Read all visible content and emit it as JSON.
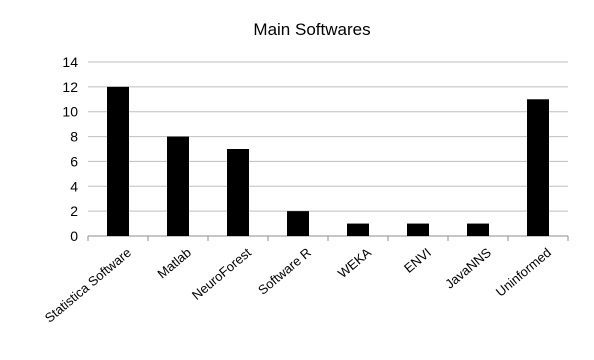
{
  "chart_data": {
    "type": "bar",
    "title": "Main  Softwares",
    "xlabel": "",
    "ylabel": "",
    "categories": [
      "Statistica Software",
      "Matlab",
      "NeuroForest",
      "Software R",
      "WEKA",
      "ENVI",
      "JavaNNS",
      "Uninformed"
    ],
    "values": [
      12,
      8,
      7,
      2,
      1,
      1,
      1,
      11
    ],
    "ylim": [
      0,
      14
    ],
    "yticks": [
      "0",
      "2",
      "4",
      "6",
      "8",
      "10",
      "12",
      "14"
    ],
    "grid": true,
    "legend": "none",
    "bar_color": "#000000"
  }
}
